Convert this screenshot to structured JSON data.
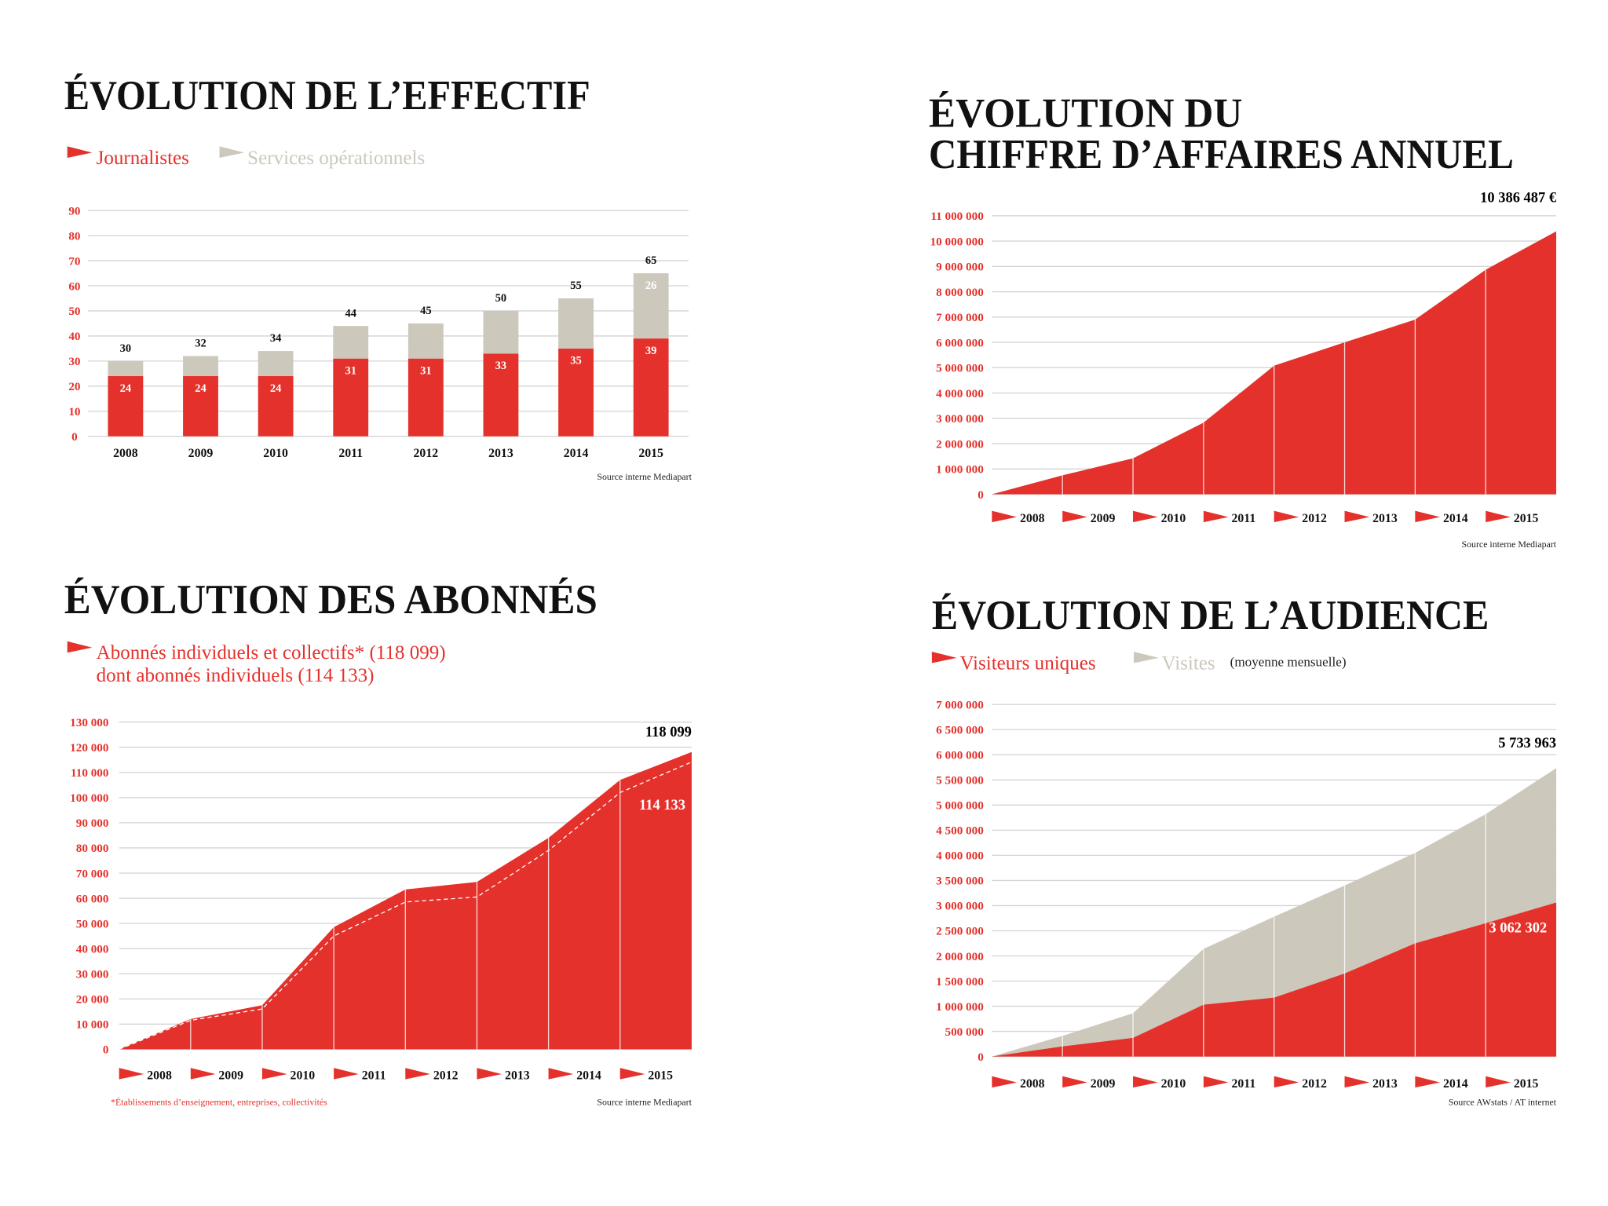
{
  "chart_data": [
    {
      "type": "bar",
      "stacked": true,
      "title": [
        "ÉVOLUTION DE L’EFFECTIF"
      ],
      "categories": [
        "2008",
        "2009",
        "2010",
        "2011",
        "2012",
        "2013",
        "2014",
        "2015"
      ],
      "series": [
        {
          "name": "Journalistes",
          "color": "#e4312b",
          "values": [
            24,
            24,
            24,
            31,
            31,
            33,
            35,
            39
          ]
        },
        {
          "name": "Services opérationnels",
          "color": "#cdc8bc",
          "values": [
            6,
            8,
            10,
            13,
            14,
            17,
            20,
            26
          ],
          "value_labels": [
            null,
            null,
            null,
            null,
            null,
            null,
            null,
            "26"
          ]
        }
      ],
      "totals": [
        30,
        32,
        34,
        44,
        45,
        50,
        55,
        65
      ],
      "ylim": [
        0,
        90
      ],
      "yticks": [
        0,
        10,
        20,
        30,
        40,
        50,
        60,
        70,
        80,
        90
      ],
      "grid": true,
      "source": "Source interne Mediapart"
    },
    {
      "type": "area",
      "title": [
        "ÉVOLUTION DU",
        "CHIFFRE D’AFFAIRES ANNUEL"
      ],
      "categories": [
        null,
        "2008",
        "2009",
        "2010",
        "2011",
        "2012",
        "2013",
        "2014",
        "2015"
      ],
      "series": [
        {
          "color": "#e4312b",
          "values": [
            0,
            750000,
            1420000,
            2830000,
            5080000,
            6000000,
            6900000,
            8870000,
            10386487
          ],
          "value_labels": [
            null,
            null,
            null,
            null,
            null,
            null,
            null,
            null,
            "10 386 487 €"
          ]
        }
      ],
      "ylim": [
        0,
        11000000
      ],
      "yticks": [
        0,
        {
          "value": 1000000,
          "label": "1 000 000"
        },
        {
          "value": 2000000,
          "label": "2 000 000"
        },
        {
          "value": 3000000,
          "label": "3 000 000"
        },
        {
          "value": 4000000,
          "label": "4 000 000"
        },
        {
          "value": 5000000,
          "label": "5 000 000"
        },
        {
          "value": 6000000,
          "label": "6 000 000"
        },
        {
          "value": 7000000,
          "label": "7 000 000"
        },
        {
          "value": 8000000,
          "label": "8 000 000"
        },
        {
          "value": 9000000,
          "label": "9 000 000"
        },
        {
          "value": 10000000,
          "label": "10 000 000"
        },
        {
          "value": 11000000,
          "label": "11 000 000"
        }
      ],
      "grid": true,
      "source": "Source interne Mediapart"
    },
    {
      "type": "area",
      "title": [
        "ÉVOLUTION DES ABONNÉS"
      ],
      "categories": [
        null,
        "2008",
        "2009",
        "2010",
        "2011",
        "2012",
        "2013",
        "2014",
        "2015"
      ],
      "series": [
        {
          "name": "Abonnés individuels et collectifs* (118 099)",
          "color": "#e4312b",
          "values": [
            0,
            12000,
            17500,
            48500,
            63500,
            66500,
            84000,
            107000,
            118099
          ],
          "value_labels": [
            null,
            null,
            null,
            null,
            null,
            null,
            null,
            null,
            "118 099"
          ]
        },
        {
          "name": "dont abonnés individuels (114 133)",
          "color": "#ffffff",
          "line": "dashed",
          "values": [
            0,
            11500,
            16000,
            45000,
            58500,
            60500,
            79000,
            102000,
            114133
          ],
          "value_labels": [
            null,
            null,
            null,
            null,
            null,
            null,
            null,
            null,
            "114 133"
          ]
        }
      ],
      "ylim": [
        0,
        130000
      ],
      "yticks": [
        0,
        {
          "value": 10000,
          "label": "10 000"
        },
        {
          "value": 20000,
          "label": "20 000"
        },
        {
          "value": 30000,
          "label": "30 000"
        },
        {
          "value": 40000,
          "label": "40 000"
        },
        {
          "value": 50000,
          "label": "50 000"
        },
        {
          "value": 60000,
          "label": "60 000"
        },
        {
          "value": 70000,
          "label": "70 000"
        },
        {
          "value": 80000,
          "label": "80 000"
        },
        {
          "value": 90000,
          "label": "90 000"
        },
        {
          "value": 100000,
          "label": "100 000"
        },
        {
          "value": 110000,
          "label": "110 000"
        },
        {
          "value": 120000,
          "label": "120 000"
        },
        {
          "value": 130000,
          "label": "130 000"
        }
      ],
      "grid": true,
      "footnote": "*Établissements d’enseignement, entreprises, collectivités",
      "source": "Source interne Mediapart"
    },
    {
      "type": "area",
      "title": [
        "ÉVOLUTION DE L’AUDIENCE"
      ],
      "categories": [
        null,
        "2008",
        "2009",
        "2010",
        "2011",
        "2012",
        "2013",
        "2014",
        "2015"
      ],
      "series": [
        {
          "name": "Visiteurs uniques",
          "color": "#e4312b",
          "values": [
            0,
            200000,
            370000,
            1030000,
            1170000,
            1650000,
            2250000,
            2650000,
            3062302
          ],
          "value_labels": [
            null,
            null,
            null,
            null,
            null,
            null,
            null,
            null,
            "3 062 302"
          ]
        },
        {
          "name": "Visites",
          "color": "#cdc8bc",
          "values": [
            0,
            410000,
            860000,
            2140000,
            2780000,
            3400000,
            4050000,
            4820000,
            5733963
          ],
          "value_labels": [
            null,
            null,
            null,
            null,
            null,
            null,
            null,
            null,
            "5 733 963"
          ]
        }
      ],
      "note": "(moyenne mensuelle)",
      "ylim": [
        0,
        7000000
      ],
      "yticks": [
        0,
        {
          "value": 500000,
          "label": "500 000"
        },
        {
          "value": 1000000,
          "label": "1 000 000"
        },
        {
          "value": 1500000,
          "label": "1 500 000"
        },
        {
          "value": 2000000,
          "label": "2 000 000"
        },
        {
          "value": 2500000,
          "label": "2 500 000"
        },
        {
          "value": 3000000,
          "label": "3 000 000"
        },
        {
          "value": 3500000,
          "label": "3 500 000"
        },
        {
          "value": 4000000,
          "label": "4 000 000"
        },
        {
          "value": 4500000,
          "label": "4 500 000"
        },
        {
          "value": 5000000,
          "label": "5 000 000"
        },
        {
          "value": 5500000,
          "label": "5 500 000"
        },
        {
          "value": 6000000,
          "label": "6 000 000"
        },
        {
          "value": 6500000,
          "label": "6 500 000"
        },
        {
          "value": 7000000,
          "label": "7 000 000"
        }
      ],
      "grid": true,
      "source": "Source AWstats / AT internet"
    }
  ]
}
